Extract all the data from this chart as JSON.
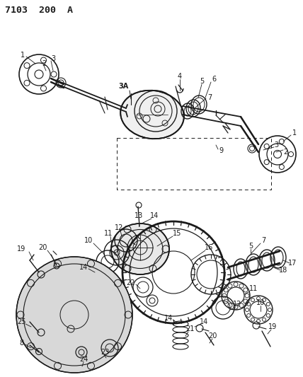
{
  "title": "7103 200 A",
  "bg_color": "#ffffff",
  "line_color": "#1a1a1a",
  "fig_width": 4.28,
  "fig_height": 5.33,
  "dpi": 100
}
